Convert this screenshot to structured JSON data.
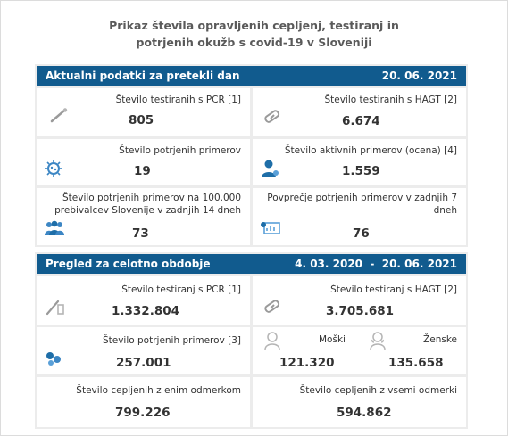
{
  "title": {
    "line1": "Prikaz števila opravljenih cepljenj, testiranj in",
    "line2": "potrjenih okužb s covid-19 v Sloveniji"
  },
  "daily": {
    "heading": "Aktualni podatki za pretekli dan",
    "date": "20. 06. 2021",
    "pcr": {
      "label": "Število testiranih s PCR [1]",
      "value": "805"
    },
    "hagt": {
      "label": "Število testiranih s HAGT [2]",
      "value": "6.674"
    },
    "confirmed": {
      "label": "Število potrjenih primerov",
      "value": "19"
    },
    "active": {
      "label": "Število aktivnih primerov (ocena) [4]",
      "value": "1.559"
    },
    "per100k": {
      "label_line1": "Število potrjenih primerov na 100.000",
      "label_line2": "prebivalcev Slovenije v zadnjih 14 dneh",
      "value": "73"
    },
    "avg7": {
      "label_line1": "Povprečje potrjenih primerov v zadnjih 7",
      "label_line2": "dneh",
      "value": "76"
    }
  },
  "overall": {
    "heading": "Pregled za celotno obdobje",
    "range": "4. 03. 2020  -  20. 06. 2021",
    "pcr": {
      "label": "Število testiranj s PCR [1]",
      "value": "1.332.804"
    },
    "hagt": {
      "label": "Število testiranj s HAGT [2]",
      "value": "3.705.681"
    },
    "confirmed": {
      "label": "Število potrjenih primerov [3]",
      "value": "257.001"
    },
    "male": {
      "label": "Moški",
      "value": "121.320"
    },
    "female": {
      "label": "Ženske",
      "value": "135.658"
    },
    "vacc1": {
      "label": "Število cepljenih z enim odmerkom",
      "value": "799.226"
    },
    "vaccall": {
      "label": "Število cepljenih z vsemi odmerki",
      "value": "594.862"
    }
  },
  "colors": {
    "header": "#115b8e",
    "panel": "#ececec",
    "text": "#333333",
    "icon": "#1e6ea8",
    "icon_grey": "#9a9a9a"
  }
}
